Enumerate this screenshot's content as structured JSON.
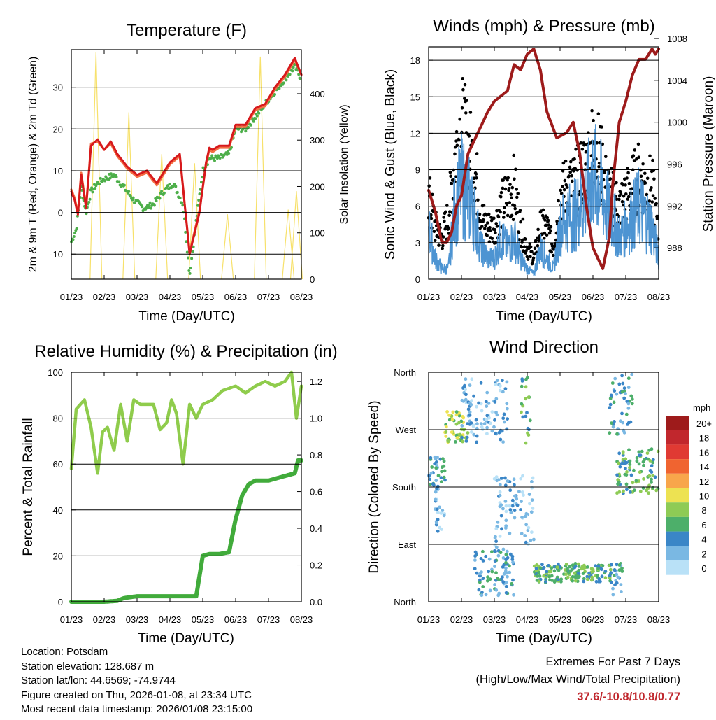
{
  "colors": {
    "temp2m": "#d7191c",
    "temp9m": "#f46d43",
    "dewpoint": "#4daf4a",
    "solar": "#f7e16b",
    "gust": "#000000",
    "wind": "#4d94d2",
    "pressure": "#9e1b1b",
    "rh": "#8fcc4c",
    "precip": "#41ab3b"
  },
  "info": {
    "location": "Location: Potsdam",
    "elevation": "Station elevation: 128.687 m",
    "latlon": "Station lat/lon: 44.6569; -74.9744",
    "created": "Figure created on Thu, 2026-01-08, at 23:34 UTC",
    "recent": "Most recent data timestamp: 2026/01/08 23:15:00"
  },
  "extremes": {
    "line1": "Extremes For Past 7 Days",
    "line2": "(High/Low/Max Wind/Total Precipitation)",
    "values": "37.6/-10.8/10.8/0.77"
  },
  "chart_data": [
    {
      "type": "line",
      "title": "Temperature (F)",
      "xlabel": "Time (Day/UTC)",
      "ylabel": "2m & 9m T (Red, Orange) & 2m Td (Green)",
      "y2label": "Solar Insolation (Yellow)",
      "x_ticks": [
        "01/23",
        "02/23",
        "03/23",
        "04/23",
        "05/23",
        "06/23",
        "07/23",
        "08/23"
      ],
      "ylim": [
        -16,
        39
      ],
      "y_ticks": [
        -10,
        0,
        10,
        20,
        30
      ],
      "y2lim": [
        0,
        495
      ],
      "y2_ticks": [
        0,
        100,
        200,
        300,
        400
      ],
      "series": [
        {
          "name": "2m T",
          "axis": "left",
          "x": [
            0,
            0.1,
            0.2,
            0.3,
            0.45,
            0.6,
            0.8,
            1.0,
            1.2,
            1.4,
            1.7,
            2.0,
            2.3,
            2.6,
            3.0,
            3.3,
            3.6,
            3.9,
            4.1,
            4.2,
            4.3,
            4.5,
            4.8,
            5.0,
            5.3,
            5.6,
            5.9,
            6.2,
            6.5,
            6.8,
            7.0
          ],
          "y": [
            5,
            3,
            -0.5,
            9,
            1,
            16,
            17.5,
            15,
            17,
            14,
            11,
            9,
            10,
            7,
            12,
            14,
            -10,
            0,
            12,
            15.5,
            15,
            16,
            16,
            21,
            21,
            25,
            26,
            30,
            33,
            37,
            33
          ]
        },
        {
          "name": "9m T",
          "axis": "left",
          "x": [
            0,
            0.1,
            0.2,
            0.3,
            0.45,
            0.6,
            0.8,
            1.0,
            1.2,
            1.4,
            1.7,
            2.0,
            2.3,
            2.6,
            3.0,
            3.3,
            3.6,
            3.9,
            4.1,
            4.2,
            4.3,
            4.5,
            4.8,
            5.0,
            5.3,
            5.6,
            5.9,
            6.2,
            6.5,
            6.8,
            7.0
          ],
          "y": [
            5.5,
            3.5,
            0,
            9.5,
            1.5,
            16.5,
            17,
            15,
            16.5,
            13.5,
            10.5,
            8.5,
            9.5,
            6.5,
            11.5,
            13.5,
            -9.5,
            0.5,
            11.5,
            15,
            14.5,
            15.5,
            15.5,
            20.5,
            20.5,
            24.5,
            25.5,
            29.5,
            32.5,
            36.5,
            33
          ]
        },
        {
          "name": "2m Td",
          "axis": "left",
          "x": [
            0,
            0.15,
            0.3,
            0.45,
            0.6,
            0.8,
            1.0,
            1.3,
            1.6,
            1.9,
            2.2,
            2.5,
            2.8,
            3.1,
            3.4,
            3.6,
            3.8,
            4.0,
            4.2,
            4.5,
            4.8,
            5.0,
            5.3,
            5.6,
            5.9,
            6.2,
            6.5,
            6.8,
            7.0
          ],
          "y": [
            -7,
            -4,
            6,
            0,
            5,
            7,
            8,
            9,
            6,
            3,
            1,
            2,
            5,
            7,
            2,
            -15,
            -2,
            10,
            13,
            13,
            14,
            20,
            20,
            23,
            26,
            29,
            32,
            35,
            32
          ]
        },
        {
          "name": "Solar Insolation",
          "axis": "right",
          "peaks": [
            [
              0.75,
              490
            ],
            [
              1.75,
              360
            ],
            [
              2.75,
              270
            ],
            [
              3.75,
              250
            ],
            [
              4.75,
              140
            ],
            [
              5.75,
              480
            ],
            [
              6.6,
              150
            ],
            [
              6.85,
              190
            ]
          ]
        }
      ]
    },
    {
      "type": "line",
      "title": "Winds (mph) & Pressure (mb)",
      "xlabel": "Time (Day/UTC)",
      "ylabel": "Sonic Wind & Gust (Blue, Black)",
      "y2label": "Station Pressure (Maroon)",
      "x_ticks": [
        "01/23",
        "02/23",
        "03/23",
        "04/23",
        "05/23",
        "06/23",
        "07/23",
        "08/23"
      ],
      "ylim": [
        0,
        19.1
      ],
      "y_ticks": [
        0,
        3,
        6,
        9,
        12,
        15,
        18
      ],
      "y2lim": [
        985.0,
        1007.2
      ],
      "y2_ticks": [
        988,
        992,
        996,
        1000,
        1004,
        1008
      ],
      "series": [
        {
          "name": "Sonic Wind",
          "axis": "left",
          "x": [
            0,
            0.2,
            0.4,
            0.6,
            0.8,
            1.0,
            1.2,
            1.4,
            1.6,
            1.8,
            2.0,
            2.2,
            2.4,
            2.6,
            2.8,
            3.0,
            3.2,
            3.4,
            3.6,
            3.8,
            4.0,
            4.2,
            4.4,
            4.6,
            4.8,
            5.0,
            5.2,
            5.4,
            5.6,
            5.8,
            6.0,
            6.2,
            6.4,
            6.6,
            6.8,
            7.0
          ],
          "y": [
            5,
            2,
            1,
            1,
            7,
            9,
            8,
            6,
            3,
            2,
            2,
            4,
            3,
            4,
            2,
            1,
            0.5,
            3,
            2,
            1,
            5,
            6,
            6,
            7,
            8,
            10,
            9,
            7,
            6,
            4,
            5,
            6,
            7,
            6,
            5,
            2
          ]
        },
        {
          "name": "Gust",
          "axis": "left",
          "x": [
            0,
            0.2,
            0.4,
            0.6,
            0.8,
            1.0,
            1.2,
            1.4,
            1.6,
            1.8,
            2.0,
            2.2,
            2.4,
            2.6,
            2.8,
            3.0,
            3.2,
            3.4,
            3.6,
            3.8,
            4.0,
            4.2,
            4.4,
            4.6,
            4.8,
            5.0,
            5.2,
            5.4,
            5.6,
            5.8,
            6.0,
            6.2,
            6.4,
            6.6,
            6.8,
            7.0
          ],
          "y": [
            8,
            5,
            4,
            6,
            12,
            15,
            13,
            11,
            6,
            5,
            5,
            7,
            8,
            9,
            5,
            3,
            2,
            5,
            5,
            3,
            8,
            9,
            9,
            10,
            11,
            13,
            12,
            9,
            8,
            7,
            8,
            9,
            10,
            9,
            9,
            4
          ]
        },
        {
          "name": "Station Pressure",
          "axis": "right",
          "x": [
            0,
            0.2,
            0.4,
            0.55,
            0.7,
            0.85,
            1.0,
            1.2,
            1.5,
            1.8,
            2.0,
            2.4,
            2.6,
            2.8,
            3.0,
            3.2,
            3.4,
            3.6,
            3.9,
            4.2,
            4.4,
            4.6,
            4.8,
            5.0,
            5.3,
            5.5,
            5.6,
            5.8,
            6.0,
            6.2,
            6.4,
            6.6,
            6.8,
            6.9,
            7.0
          ],
          "y": [
            993.5,
            991.5,
            988.5,
            988.5,
            989.5,
            992,
            993,
            997,
            999,
            1001,
            1002,
            1003,
            1005.5,
            1005,
            1006.5,
            1007,
            1005,
            1001,
            998.5,
            999,
            1000,
            997,
            992,
            988,
            986,
            989,
            994,
            1000,
            1002,
            1004.5,
            1006,
            1006,
            1007,
            1006.5,
            1007
          ]
        }
      ]
    },
    {
      "type": "line",
      "title": "Relative Humidity (%) & Precipitation (in)",
      "xlabel": "Time (Day/UTC)",
      "ylabel": "Percent & Total Rainfall",
      "x_ticks": [
        "01/23",
        "02/23",
        "03/23",
        "04/23",
        "05/23",
        "06/23",
        "07/23",
        "08/23"
      ],
      "ylim": [
        0,
        100
      ],
      "y_ticks": [
        0,
        20,
        40,
        60,
        80,
        100
      ],
      "y2lim": [
        0,
        1.25
      ],
      "y2_ticks": [
        "0.0",
        "0.2",
        "0.4",
        "0.6",
        "0.8",
        "1.0",
        "1.2"
      ],
      "series": [
        {
          "name": "Relative Humidity",
          "axis": "left",
          "x": [
            0,
            0.15,
            0.4,
            0.6,
            0.8,
            0.95,
            1.1,
            1.3,
            1.5,
            1.7,
            1.9,
            2.1,
            2.3,
            2.5,
            2.7,
            2.9,
            3.05,
            3.2,
            3.4,
            3.6,
            3.8,
            4.0,
            4.3,
            4.6,
            5.0,
            5.3,
            5.6,
            5.9,
            6.2,
            6.5,
            6.7,
            6.85,
            7.0
          ],
          "y": [
            58,
            84,
            88,
            76,
            56,
            74,
            76,
            66,
            86,
            70,
            88,
            86,
            86,
            86,
            75,
            78,
            88,
            82,
            60,
            86,
            80,
            86,
            88,
            92,
            94,
            91,
            94,
            96,
            94,
            96,
            100,
            80,
            94
          ]
        },
        {
          "name": "Total Precipitation",
          "axis": "right",
          "x": [
            0,
            1.0,
            1.4,
            1.6,
            2.0,
            2.5,
            3.0,
            3.5,
            3.8,
            4.0,
            4.2,
            4.5,
            4.8,
            5.0,
            5.2,
            5.4,
            5.6,
            6.0,
            6.4,
            6.8,
            6.9,
            7.0
          ],
          "y": [
            0,
            0,
            0.005,
            0.02,
            0.03,
            0.03,
            0.03,
            0.03,
            0.03,
            0.25,
            0.26,
            0.26,
            0.27,
            0.45,
            0.58,
            0.64,
            0.66,
            0.66,
            0.68,
            0.7,
            0.77,
            0.77
          ]
        }
      ]
    },
    {
      "type": "scatter",
      "title": "Wind Direction",
      "xlabel": "Time (Day/UTC)",
      "ylabel": "Direction (Colored By Speed)",
      "x_ticks": [
        "01/23",
        "02/23",
        "03/23",
        "04/23",
        "05/23",
        "06/23",
        "07/23",
        "08/23"
      ],
      "y_ticks": [
        "North",
        "East",
        "South",
        "West",
        "North"
      ],
      "ylim": [
        0,
        360
      ],
      "legend": {
        "title": "mph",
        "labels": [
          "20+",
          "18",
          "16",
          "14",
          "12",
          "10",
          "8",
          "6",
          "4",
          "2",
          "0"
        ],
        "colors": [
          "#9e1b1b",
          "#c1272d",
          "#e03a33",
          "#f06430",
          "#f8a64b",
          "#ede252",
          "#8ecb55",
          "#4daf6a",
          "#3a86c7",
          "#7ab8e3",
          "#b9e1f7"
        ]
      },
      "clusters": [
        {
          "x": [
            0,
            0.5
          ],
          "dir": [
            180,
            230
          ],
          "speed": 4
        },
        {
          "x": [
            0.5,
            1.2
          ],
          "dir": [
            250,
            300
          ],
          "speed": 8
        },
        {
          "x": [
            0.2,
            0.5
          ],
          "dir": [
            110,
            180
          ],
          "speed": 2
        },
        {
          "x": [
            1.4,
            2.6
          ],
          "dir": [
            10,
            80
          ],
          "speed": 4
        },
        {
          "x": [
            2.0,
            3.2
          ],
          "dir": [
            80,
            200
          ],
          "speed": 2
        },
        {
          "x": [
            2.8,
            3.1
          ],
          "dir": [
            240,
            360
          ],
          "speed": 6
        },
        {
          "x": [
            3.2,
            5.6
          ],
          "dir": [
            30,
            60
          ],
          "speed": 6
        },
        {
          "x": [
            5.6,
            5.9
          ],
          "dir": [
            10,
            60
          ],
          "speed": 4
        },
        {
          "x": [
            5.7,
            7.0
          ],
          "dir": [
            170,
            240
          ],
          "speed": 6
        },
        {
          "x": [
            5.5,
            6.2
          ],
          "dir": [
            260,
            360
          ],
          "speed": 4
        },
        {
          "x": [
            1.0,
            2.4
          ],
          "dir": [
            250,
            350
          ],
          "speed": 2
        }
      ]
    }
  ]
}
